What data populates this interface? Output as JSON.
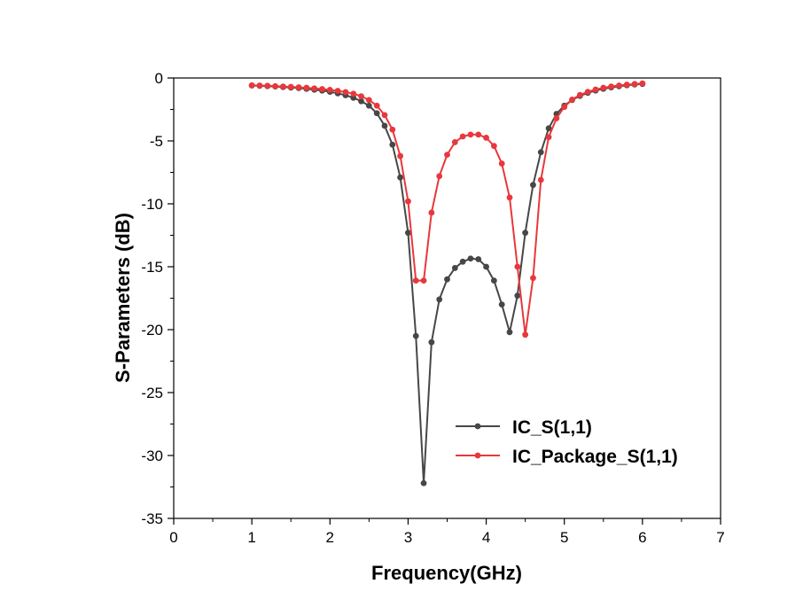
{
  "chart_data": {
    "type": "line",
    "xlabel": "Frequency(GHz)",
    "ylabel": "S-Parameters (dB)",
    "xlim": [
      0,
      7
    ],
    "ylim": [
      -35,
      0
    ],
    "x_ticks": [
      0,
      1,
      2,
      3,
      4,
      5,
      6,
      7
    ],
    "x_tick_labels": [
      "0",
      "1",
      "2",
      "3",
      "4",
      "5",
      "6",
      "7"
    ],
    "y_ticks": [
      0,
      -5,
      -10,
      -15,
      -20,
      -25,
      -30,
      -35
    ],
    "y_tick_labels": [
      "0",
      "-5",
      "-10",
      "-15",
      "-20",
      "-25",
      "-30",
      "-35"
    ],
    "legend_position": "lower-right",
    "series": [
      {
        "name": "IC_S(1,1)",
        "color": "#474747",
        "x": [
          1.0,
          1.1,
          1.2,
          1.3,
          1.4,
          1.5,
          1.6,
          1.7,
          1.8,
          1.9,
          2.0,
          2.1,
          2.2,
          2.3,
          2.4,
          2.5,
          2.6,
          2.7,
          2.8,
          2.9,
          3.0,
          3.1,
          3.2,
          3.3,
          3.4,
          3.5,
          3.6,
          3.7,
          3.8,
          3.9,
          4.0,
          4.1,
          4.2,
          4.3,
          4.4,
          4.5,
          4.6,
          4.7,
          4.8,
          4.9,
          5.0,
          5.1,
          5.2,
          5.3,
          5.4,
          5.5,
          5.6,
          5.7,
          5.8,
          5.9,
          6.0
        ],
        "y": [
          -0.6,
          -0.62,
          -0.65,
          -0.68,
          -0.72,
          -0.76,
          -0.8,
          -0.86,
          -0.93,
          -1.0,
          -1.1,
          -1.22,
          -1.37,
          -1.57,
          -1.85,
          -2.2,
          -2.8,
          -3.8,
          -5.3,
          -7.9,
          -12.3,
          -20.5,
          -32.2,
          -21.0,
          -17.6,
          -16.0,
          -15.1,
          -14.6,
          -14.35,
          -14.4,
          -15.0,
          -16.1,
          -18.0,
          -20.2,
          -17.3,
          -12.3,
          -8.5,
          -5.9,
          -4.0,
          -2.85,
          -2.2,
          -1.75,
          -1.42,
          -1.18,
          -1.0,
          -0.86,
          -0.75,
          -0.66,
          -0.58,
          -0.52,
          -0.47
        ]
      },
      {
        "name": "IC_Package_S(1,1)",
        "color": "#e8383d",
        "x": [
          1.0,
          1.1,
          1.2,
          1.3,
          1.4,
          1.5,
          1.6,
          1.7,
          1.8,
          1.9,
          2.0,
          2.1,
          2.2,
          2.3,
          2.4,
          2.5,
          2.6,
          2.7,
          2.8,
          2.9,
          3.0,
          3.1,
          3.2,
          3.3,
          3.4,
          3.5,
          3.6,
          3.7,
          3.8,
          3.9,
          4.0,
          4.1,
          4.2,
          4.3,
          4.4,
          4.5,
          4.6,
          4.7,
          4.8,
          4.9,
          5.0,
          5.1,
          5.2,
          5.3,
          5.4,
          5.5,
          5.6,
          5.7,
          5.8,
          5.9,
          6.0
        ],
        "y": [
          -0.58,
          -0.6,
          -0.62,
          -0.65,
          -0.68,
          -0.71,
          -0.74,
          -0.78,
          -0.83,
          -0.88,
          -0.94,
          -1.02,
          -1.12,
          -1.25,
          -1.45,
          -1.75,
          -2.2,
          -2.95,
          -4.1,
          -6.2,
          -9.8,
          -16.1,
          -16.1,
          -10.7,
          -7.8,
          -6.1,
          -5.1,
          -4.65,
          -4.5,
          -4.5,
          -4.75,
          -5.4,
          -6.8,
          -9.5,
          -15.0,
          -20.4,
          -15.9,
          -8.1,
          -4.7,
          -3.2,
          -2.3,
          -1.72,
          -1.35,
          -1.1,
          -0.92,
          -0.78,
          -0.68,
          -0.6,
          -0.53,
          -0.48,
          -0.43
        ]
      }
    ]
  }
}
